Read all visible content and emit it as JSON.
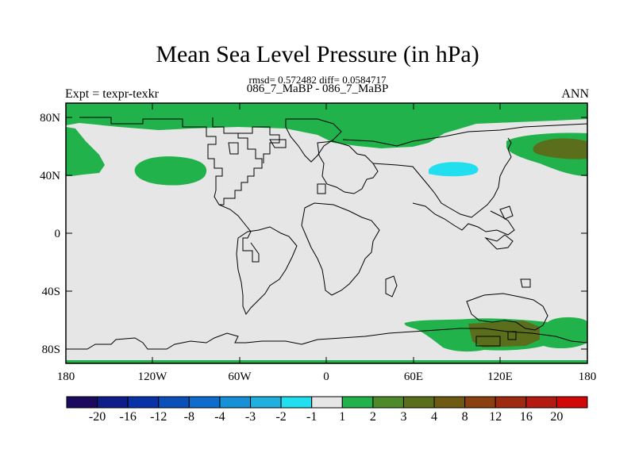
{
  "title": "Mean Sea Level Pressure (in hPa)",
  "stats": "rmsd= 0.572482 diff= 0.0584717",
  "comparison": "086_7_MaBP - 086_7_MaBP",
  "experiment_label": "Expt = texpr-texkr",
  "season": "ANN",
  "y_ticks": [
    "80N",
    "40N",
    "0",
    "40S",
    "80S"
  ],
  "x_ticks": [
    "180",
    "120W",
    "60W",
    "0",
    "60E",
    "120E",
    "180"
  ],
  "colorbar": {
    "colors": [
      "#1b0a5e",
      "#0f1d8a",
      "#0a32a8",
      "#0b4fb8",
      "#0d6ccc",
      "#1690d6",
      "#1fb0e0",
      "#22dff0",
      "#e6e6e6",
      "#22b24c",
      "#4e8a2a",
      "#5a6e1c",
      "#6e5a12",
      "#8a4010",
      "#9e2a10",
      "#b41a10",
      "#d20808"
    ],
    "labels": [
      "-20",
      "-16",
      "-12",
      "-8",
      "-4",
      "-3",
      "-2",
      "-1",
      "1",
      "2",
      "3",
      "4",
      "8",
      "12",
      "16",
      "20"
    ]
  },
  "colors": {
    "background_land": "#e6e6e6",
    "positive_1_2": "#22b24c",
    "positive_4_8": "#5a6e1c",
    "negative_1_2": "#22dff0"
  }
}
